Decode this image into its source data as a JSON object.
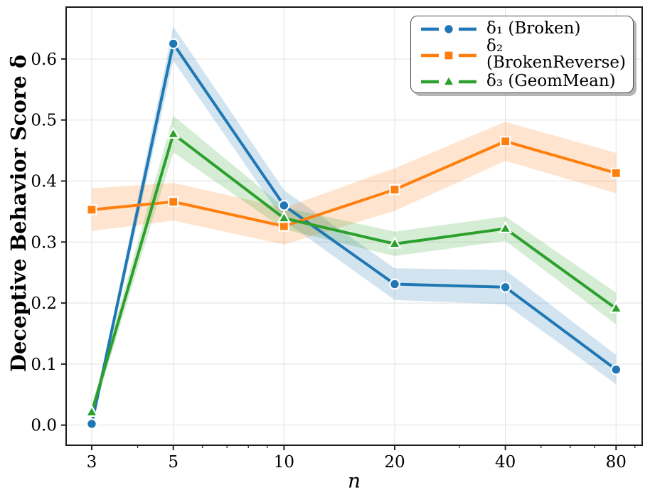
{
  "figure": {
    "background": "#ffffff",
    "axes_frame_color": "#1a1a1a",
    "grid_color": "#e5e5e5",
    "tick_color": "#222222"
  },
  "chart_data": {
    "type": "line",
    "title": "",
    "xlabel": "n",
    "ylabel": "Deceptive Behavior Score δ",
    "xscale": "log",
    "xlim": [
      2.556,
      94.2
    ],
    "ylim": [
      -0.033,
      0.685
    ],
    "grid": true,
    "legend_position": "upper right",
    "x": [
      3,
      5,
      10,
      20,
      40,
      80
    ],
    "xticks": [
      3,
      5,
      10,
      20,
      40,
      80
    ],
    "xtick_labels": [
      "3",
      "5",
      "10",
      "20",
      "40",
      "80"
    ],
    "xticks_minor": [
      4,
      6,
      7,
      8,
      9,
      30,
      50,
      60,
      70,
      90
    ],
    "yticks": [
      0.0,
      0.1,
      0.2,
      0.3,
      0.4,
      0.5,
      0.6
    ],
    "ytick_labels": [
      "0.0",
      "0.1",
      "0.2",
      "0.3",
      "0.4",
      "0.5",
      "0.6"
    ],
    "band_opacity": 0.2,
    "series": [
      {
        "name": "δ₁ (Broken)",
        "color": "#1f77b4",
        "marker": "circle",
        "values": [
          0.002,
          0.625,
          0.36,
          0.231,
          0.226,
          0.091
        ],
        "band_halfwidth": [
          0.006,
          0.028,
          0.025,
          0.026,
          0.028,
          0.024
        ]
      },
      {
        "name": "δ₂ (BrokenReverse)",
        "color": "#ff7f0e",
        "marker": "square",
        "values": [
          0.353,
          0.366,
          0.326,
          0.386,
          0.465,
          0.413
        ],
        "band_halfwidth": [
          0.035,
          0.031,
          0.03,
          0.035,
          0.032,
          0.033
        ]
      },
      {
        "name": "δ₃ (GeomMean)",
        "color": "#2ca02c",
        "marker": "triangle",
        "values": [
          0.021,
          0.477,
          0.339,
          0.297,
          0.322,
          0.191
        ],
        "band_halfwidth": [
          0.01,
          0.03,
          0.018,
          0.02,
          0.02,
          0.026
        ]
      }
    ]
  },
  "legend": {
    "items": [
      {
        "label": "δ₁ (Broken)"
      },
      {
        "label": "δ₂ (BrokenReverse)"
      },
      {
        "label": "δ₃ (GeomMean)"
      }
    ]
  },
  "axis_labels": {
    "x": "n",
    "y": "Deceptive Behavior Score δ"
  }
}
